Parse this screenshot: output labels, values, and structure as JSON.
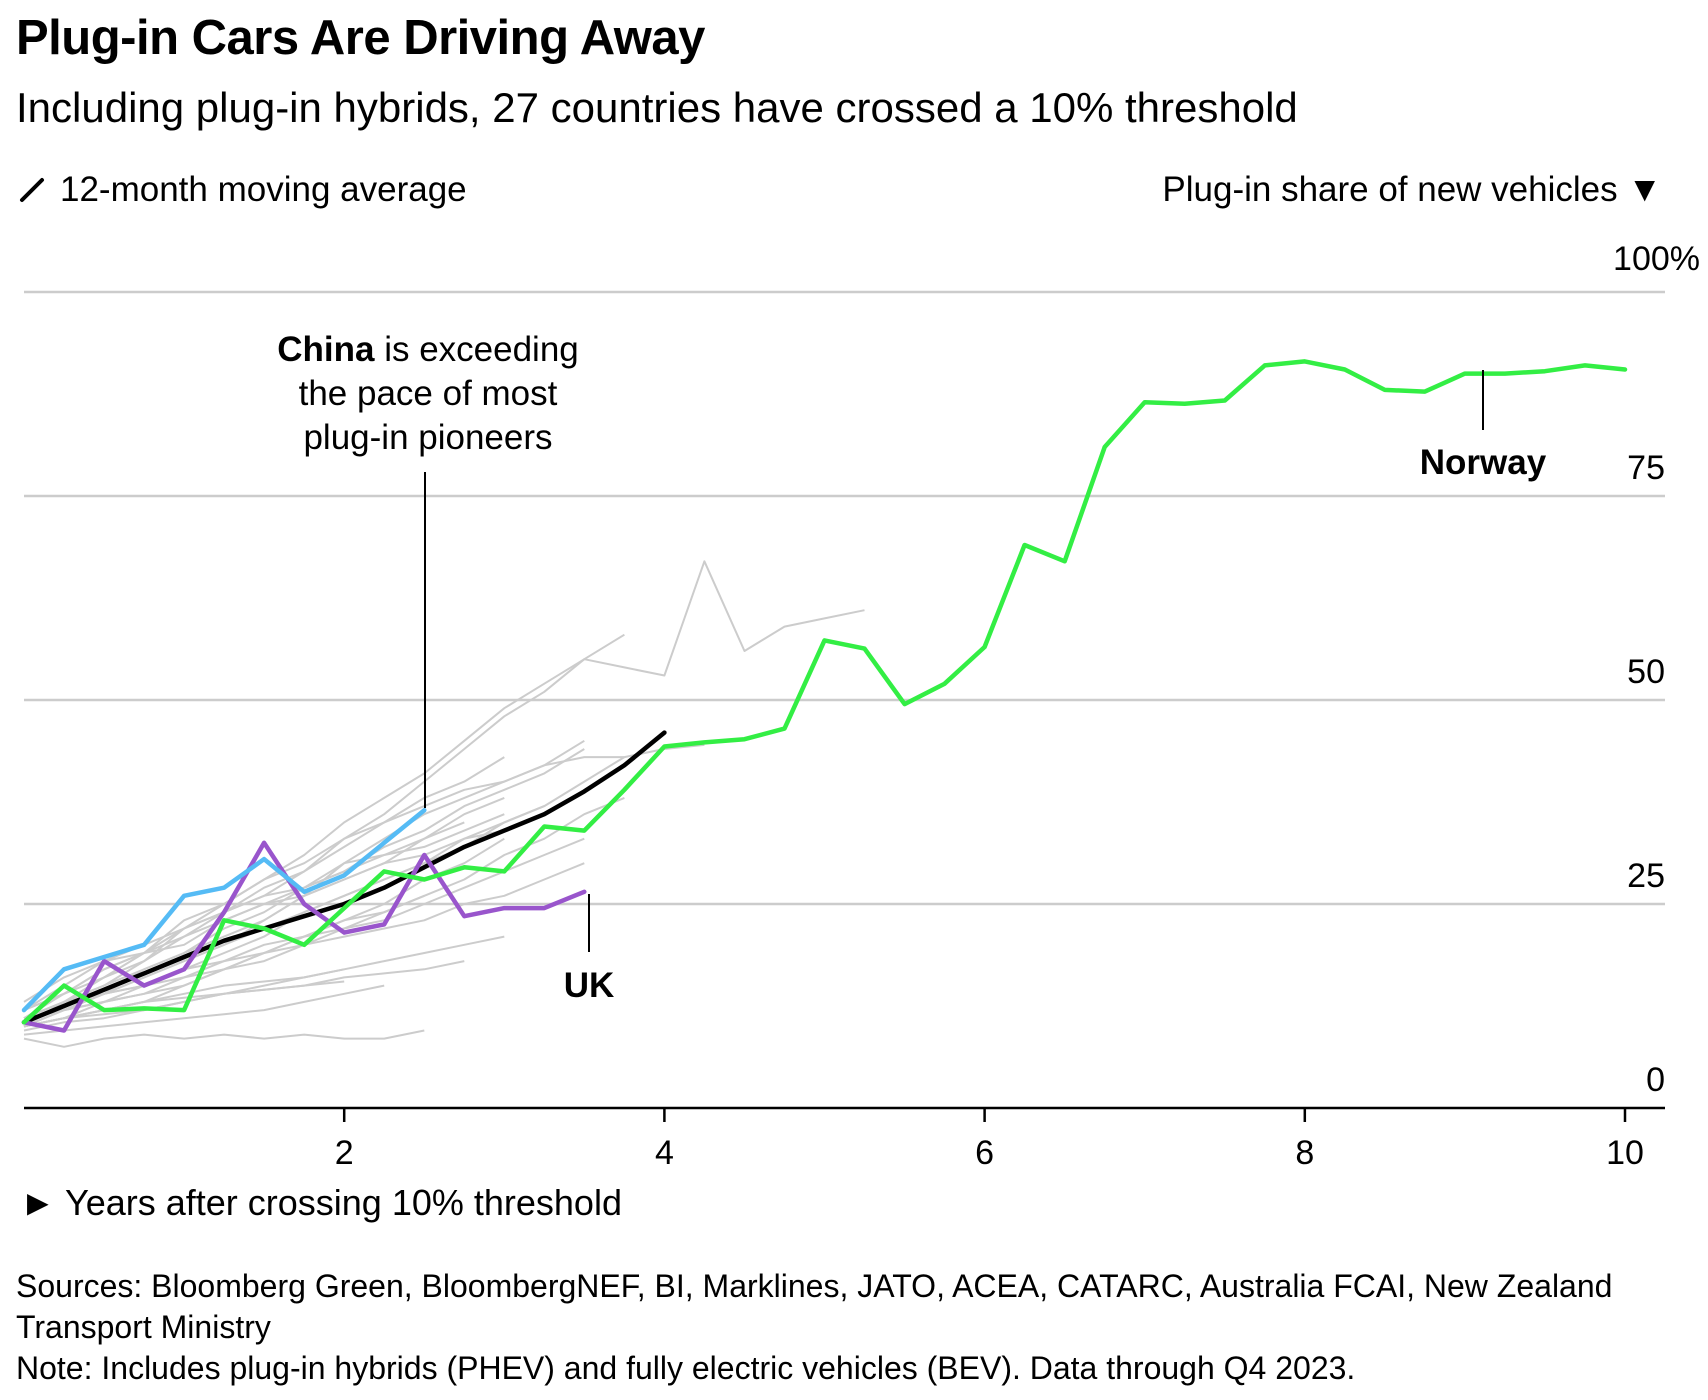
{
  "title": "Plug-in Cars Are Driving Away",
  "subtitle": "Including plug-in hybrids, 27 countries have crossed a 10% threshold",
  "legend": {
    "line_label": "12-month moving average"
  },
  "y_axis_title": "Plug-in share of new vehicles ▼",
  "x_axis_title": "► Years after crossing 10% threshold",
  "sources": "Sources: Bloomberg Green, BloombergNEF, BI, Marklines, JATO, ACEA, CATARC, Australia FCAI, New Zealand Transport Ministry",
  "note": "Note: Includes plug-in hybrids (PHEV) and fully electric vehicles (BEV). Data through Q4 2023.",
  "annotations": {
    "china_bold": "China",
    "china_rest_1": " is exceeding",
    "china_line_2": "the pace of most",
    "china_line_3": "plug-in pioneers",
    "norway": "Norway",
    "uk": "UK"
  },
  "colors": {
    "norway": "#33ee44",
    "china": "#55bbf5",
    "uk": "#9955cc",
    "average": "#000000",
    "others": "#cccccc",
    "grid": "#cccccc"
  },
  "chart_data": {
    "type": "line",
    "xlabel": "Years after crossing 10% threshold",
    "ylabel": "Plug-in share of new vehicles",
    "xlim": [
      0,
      10.2
    ],
    "ylim": [
      0,
      100
    ],
    "x_ticks": [
      2,
      4,
      6,
      8,
      10
    ],
    "x_tick_labels": [
      "2",
      "4",
      "6",
      "8",
      "10"
    ],
    "y_ticks": [
      0,
      25,
      50,
      75,
      100
    ],
    "y_tick_labels": [
      "0",
      "25",
      "50",
      "75",
      "100%"
    ],
    "grid": true,
    "legend_position": "top-left",
    "series": [
      {
        "name": "Norway",
        "role": "highlight",
        "x": [
          0,
          0.25,
          0.5,
          0.75,
          1,
          1.25,
          1.5,
          1.75,
          2,
          2.25,
          2.5,
          2.75,
          3,
          3.25,
          3.5,
          3.75,
          4,
          4.25,
          4.5,
          4.75,
          5,
          5.25,
          5.5,
          5.75,
          6,
          6.25,
          6.5,
          6.75,
          7,
          7.25,
          7.5,
          7.75,
          8,
          8.25,
          8.5,
          8.75,
          9,
          9.25,
          9.5,
          9.75,
          10
        ],
        "y": [
          10.5,
          15,
          12,
          12.2,
          12,
          23,
          22,
          20,
          24.5,
          29,
          28,
          29.5,
          29,
          34.5,
          34,
          39,
          44.3,
          44.8,
          45.2,
          46.5,
          57.3,
          56.3,
          49.5,
          52,
          56.5,
          69,
          67,
          81,
          86.5,
          86.3,
          86.7,
          91,
          91.5,
          90.5,
          88,
          87.8,
          90,
          90,
          90.3,
          91,
          90.5
        ]
      },
      {
        "name": "China",
        "role": "highlight",
        "x": [
          0,
          0.25,
          0.5,
          0.75,
          1,
          1.25,
          1.5,
          1.75,
          2,
          2.25,
          2.5
        ],
        "y": [
          12,
          17,
          18.5,
          20,
          26,
          27,
          30.5,
          26.5,
          28.5,
          32.5,
          36.5
        ]
      },
      {
        "name": "UK",
        "role": "highlight",
        "x": [
          0,
          0.25,
          0.5,
          0.75,
          1,
          1.25,
          1.5,
          1.75,
          2,
          2.25,
          2.5,
          2.75,
          3,
          3.25,
          3.5
        ],
        "y": [
          10.5,
          9.5,
          18,
          15,
          17,
          24,
          32.5,
          25,
          21.5,
          22.5,
          31,
          23.5,
          24.5,
          24.5,
          26.5
        ]
      },
      {
        "name": "",
        "role": "average",
        "x": [
          0,
          0.25,
          0.5,
          0.75,
          1,
          1.25,
          1.5,
          1.75,
          2,
          2.25,
          2.5,
          2.75,
          3,
          3.25,
          3.5,
          3.75,
          4
        ],
        "y": [
          10.5,
          12.5,
          14.5,
          16.5,
          18.5,
          20.5,
          22,
          23.5,
          25,
          27,
          29.5,
          32,
          34,
          36,
          38.8,
          42,
          46
        ]
      },
      {
        "name": "",
        "role": "other",
        "x": [
          0,
          0.25,
          0.5,
          0.75,
          1,
          1.25,
          1.5,
          1.75,
          2,
          2.25,
          2.5,
          2.75,
          3,
          3.25,
          3.5,
          3.75,
          4,
          4.25,
          4.5,
          4.75,
          5,
          5.25
        ],
        "y": [
          11,
          13,
          15,
          18,
          22,
          24,
          26,
          29,
          33,
          36,
          40,
          44,
          48,
          51,
          55,
          54,
          53,
          67,
          56,
          59,
          60,
          61
        ]
      },
      {
        "name": "",
        "role": "other",
        "x": [
          0,
          0.25,
          0.5,
          0.75,
          1,
          1.25,
          1.5,
          1.75,
          2,
          2.25,
          2.5,
          2.75,
          3,
          3.25,
          3.5,
          3.75
        ],
        "y": [
          12,
          14,
          17,
          19,
          23,
          25,
          28,
          31,
          35,
          38,
          41,
          45,
          49,
          52,
          55,
          58
        ]
      },
      {
        "name": "",
        "role": "other",
        "x": [
          0,
          0.25,
          0.5,
          0.75,
          1,
          1.25,
          1.5,
          1.75,
          2,
          2.25,
          2.5,
          2.75,
          3,
          3.25,
          3.5,
          3.75,
          4,
          4.25
        ],
        "y": [
          10,
          12,
          14,
          16,
          18,
          20,
          23,
          26,
          30,
          33,
          36,
          38,
          40,
          42,
          43,
          43,
          44,
          44.5
        ]
      },
      {
        "name": "",
        "role": "other",
        "x": [
          0,
          0.25,
          0.5,
          0.75,
          1,
          1.25,
          1.5,
          1.75,
          2,
          2.25,
          2.5,
          2.75,
          3,
          3.25,
          3.5
        ],
        "y": [
          11,
          13,
          15,
          17,
          19,
          22,
          24,
          27,
          29,
          32,
          34,
          37,
          39,
          41,
          44
        ]
      },
      {
        "name": "",
        "role": "other",
        "x": [
          0,
          0.25,
          0.5,
          0.75,
          1,
          1.25,
          1.5,
          1.75,
          2,
          2.25,
          2.5,
          2.75,
          3,
          3.25,
          3.5,
          3.75
        ],
        "y": [
          10,
          12,
          13,
          15,
          17,
          19,
          21,
          24,
          26,
          28,
          30,
          33,
          35,
          37,
          40,
          43
        ]
      },
      {
        "name": "",
        "role": "other",
        "x": [
          0,
          0.25,
          0.5,
          0.75,
          1,
          1.25,
          1.5,
          1.75,
          2,
          2.25,
          2.5,
          2.75,
          3
        ],
        "y": [
          11,
          14,
          16,
          18,
          21,
          24,
          27,
          29,
          32,
          35,
          38,
          40,
          43
        ]
      },
      {
        "name": "",
        "role": "other",
        "x": [
          0,
          0.25,
          0.5,
          0.75,
          1,
          1.25,
          1.5,
          1.75,
          2,
          2.25,
          2.5,
          2.75,
          3,
          3.25
        ],
        "y": [
          11,
          13,
          14,
          16,
          18,
          20,
          22,
          24,
          26,
          28,
          30,
          32,
          35,
          37
        ]
      },
      {
        "name": "",
        "role": "other",
        "x": [
          0,
          0.25,
          0.5,
          0.75,
          1,
          1.25,
          1.5,
          1.75,
          2,
          2.25,
          2.5,
          2.75,
          3
        ],
        "y": [
          10,
          13,
          16,
          19,
          21,
          23,
          25,
          27,
          30,
          31,
          33,
          36,
          38
        ]
      },
      {
        "name": "",
        "role": "other",
        "x": [
          0,
          0.25,
          0.5,
          0.75,
          1,
          1.25,
          1.5,
          1.75,
          2,
          2.25,
          2.5
        ],
        "y": [
          11,
          12,
          14,
          15,
          17,
          18,
          20,
          21,
          23,
          24,
          26
        ]
      },
      {
        "name": "",
        "role": "other",
        "x": [
          0,
          0.25,
          0.5,
          0.75,
          1,
          1.25,
          1.5,
          1.75,
          2,
          2.25,
          2.5,
          2.75,
          3,
          3.25,
          3.5
        ],
        "y": [
          10,
          11,
          12,
          13,
          15,
          17,
          18,
          20,
          21,
          22,
          23,
          25,
          26,
          28,
          30
        ]
      },
      {
        "name": "",
        "role": "other",
        "x": [
          0,
          0.25,
          0.5,
          0.75,
          1,
          1.25,
          1.5,
          1.75,
          2,
          2.25,
          2.5,
          2.75,
          3,
          3.25
        ],
        "y": [
          12,
          15,
          18,
          19,
          20,
          23,
          25,
          26,
          28,
          30,
          31,
          33,
          34,
          36
        ]
      },
      {
        "name": "",
        "role": "other",
        "x": [
          0,
          0.25,
          0.5,
          0.75,
          1,
          1.25,
          1.5,
          1.75,
          2,
          2.25,
          2.5,
          2.75,
          3
        ],
        "y": [
          10,
          11,
          11.5,
          12,
          13,
          14,
          15,
          16,
          17,
          18,
          19,
          20,
          21
        ]
      },
      {
        "name": "",
        "role": "other",
        "x": [
          0,
          0.25,
          0.5,
          0.75,
          1,
          1.25,
          1.5,
          1.75,
          2,
          2.25,
          2.5,
          2.75
        ],
        "y": [
          9.5,
          10.5,
          11,
          12,
          13,
          14,
          14.5,
          15,
          16,
          16.5,
          17,
          18
        ]
      },
      {
        "name": "",
        "role": "other",
        "x": [
          0,
          0.25,
          0.5,
          0.75,
          1,
          1.25,
          1.5,
          1.75,
          2,
          2.25
        ],
        "y": [
          9,
          9.5,
          10,
          10.5,
          11,
          11.5,
          12,
          13,
          14,
          15
        ]
      },
      {
        "name": "",
        "role": "other",
        "x": [
          0,
          0.25,
          0.5,
          0.75,
          1,
          1.25,
          1.5,
          1.75,
          2,
          2.25,
          2.5
        ],
        "y": [
          8.5,
          7.5,
          8.5,
          9,
          8.5,
          9,
          8.5,
          9,
          8.5,
          8.5,
          9.5
        ]
      },
      {
        "name": "",
        "role": "other",
        "x": [
          0,
          0.25,
          0.5,
          0.75,
          1,
          1.25,
          1.5,
          1.75,
          2,
          2.25,
          2.5,
          2.75,
          3,
          3.25,
          3.5
        ],
        "y": [
          12,
          14,
          17,
          19,
          22,
          25,
          28,
          30,
          33,
          35,
          37,
          39,
          40,
          42,
          45
        ]
      },
      {
        "name": "",
        "role": "other",
        "x": [
          0,
          0.25,
          0.5,
          0.75,
          1,
          1.25,
          1.5,
          1.75,
          2,
          2.25,
          2.5,
          2.75,
          3
        ],
        "y": [
          13,
          16,
          18,
          20,
          22,
          24,
          26,
          27,
          29,
          31,
          32,
          34,
          36
        ]
      },
      {
        "name": "",
        "role": "other",
        "x": [
          0,
          0.25,
          0.5,
          0.75,
          1,
          1.25,
          1.5,
          1.75,
          2
        ],
        "y": [
          10,
          11,
          12,
          13,
          13.5,
          14,
          14.5,
          15,
          15.5
        ]
      },
      {
        "name": "",
        "role": "other",
        "x": [
          0,
          0.25,
          0.5,
          0.75,
          1,
          1.25,
          1.5,
          1.75,
          2,
          2.25,
          2.5,
          2.75,
          3,
          3.25,
          3.5,
          3.75
        ],
        "y": [
          11,
          12,
          14,
          15,
          16,
          18,
          19,
          21,
          22,
          24,
          26,
          28,
          31,
          33,
          36,
          38
        ]
      },
      {
        "name": "",
        "role": "other",
        "x": [
          0,
          0.25,
          0.5,
          0.75,
          1,
          1.25,
          1.5,
          1.75,
          2,
          2.25,
          2.5,
          2.75,
          3
        ],
        "y": [
          10,
          11,
          13,
          14,
          15,
          17,
          19,
          21,
          23,
          25,
          28,
          30,
          33
        ]
      },
      {
        "name": "",
        "role": "other",
        "x": [
          0,
          0.25,
          0.5,
          0.75,
          1,
          1.25,
          1.5,
          1.75,
          2,
          2.25,
          2.5,
          2.75
        ],
        "y": [
          10,
          12,
          14,
          17,
          19,
          21,
          23,
          26,
          28,
          30,
          33,
          35
        ]
      },
      {
        "name": "",
        "role": "other",
        "x": [
          0,
          0.25,
          0.5,
          0.75,
          1,
          1.25,
          1.5,
          1.75,
          2,
          2.25,
          2.5,
          2.75,
          3,
          3.25,
          3.5
        ],
        "y": [
          11,
          12,
          13,
          14,
          16,
          17,
          19,
          20,
          22,
          23,
          25,
          27,
          29,
          31,
          33
        ]
      },
      {
        "name": "",
        "role": "other",
        "x": [
          0,
          0.25,
          0.5,
          0.75,
          1,
          1.25,
          1.5,
          1.75,
          2
        ],
        "y": [
          10,
          11,
          12,
          13,
          14,
          15,
          15.5,
          16,
          17
        ]
      }
    ]
  }
}
